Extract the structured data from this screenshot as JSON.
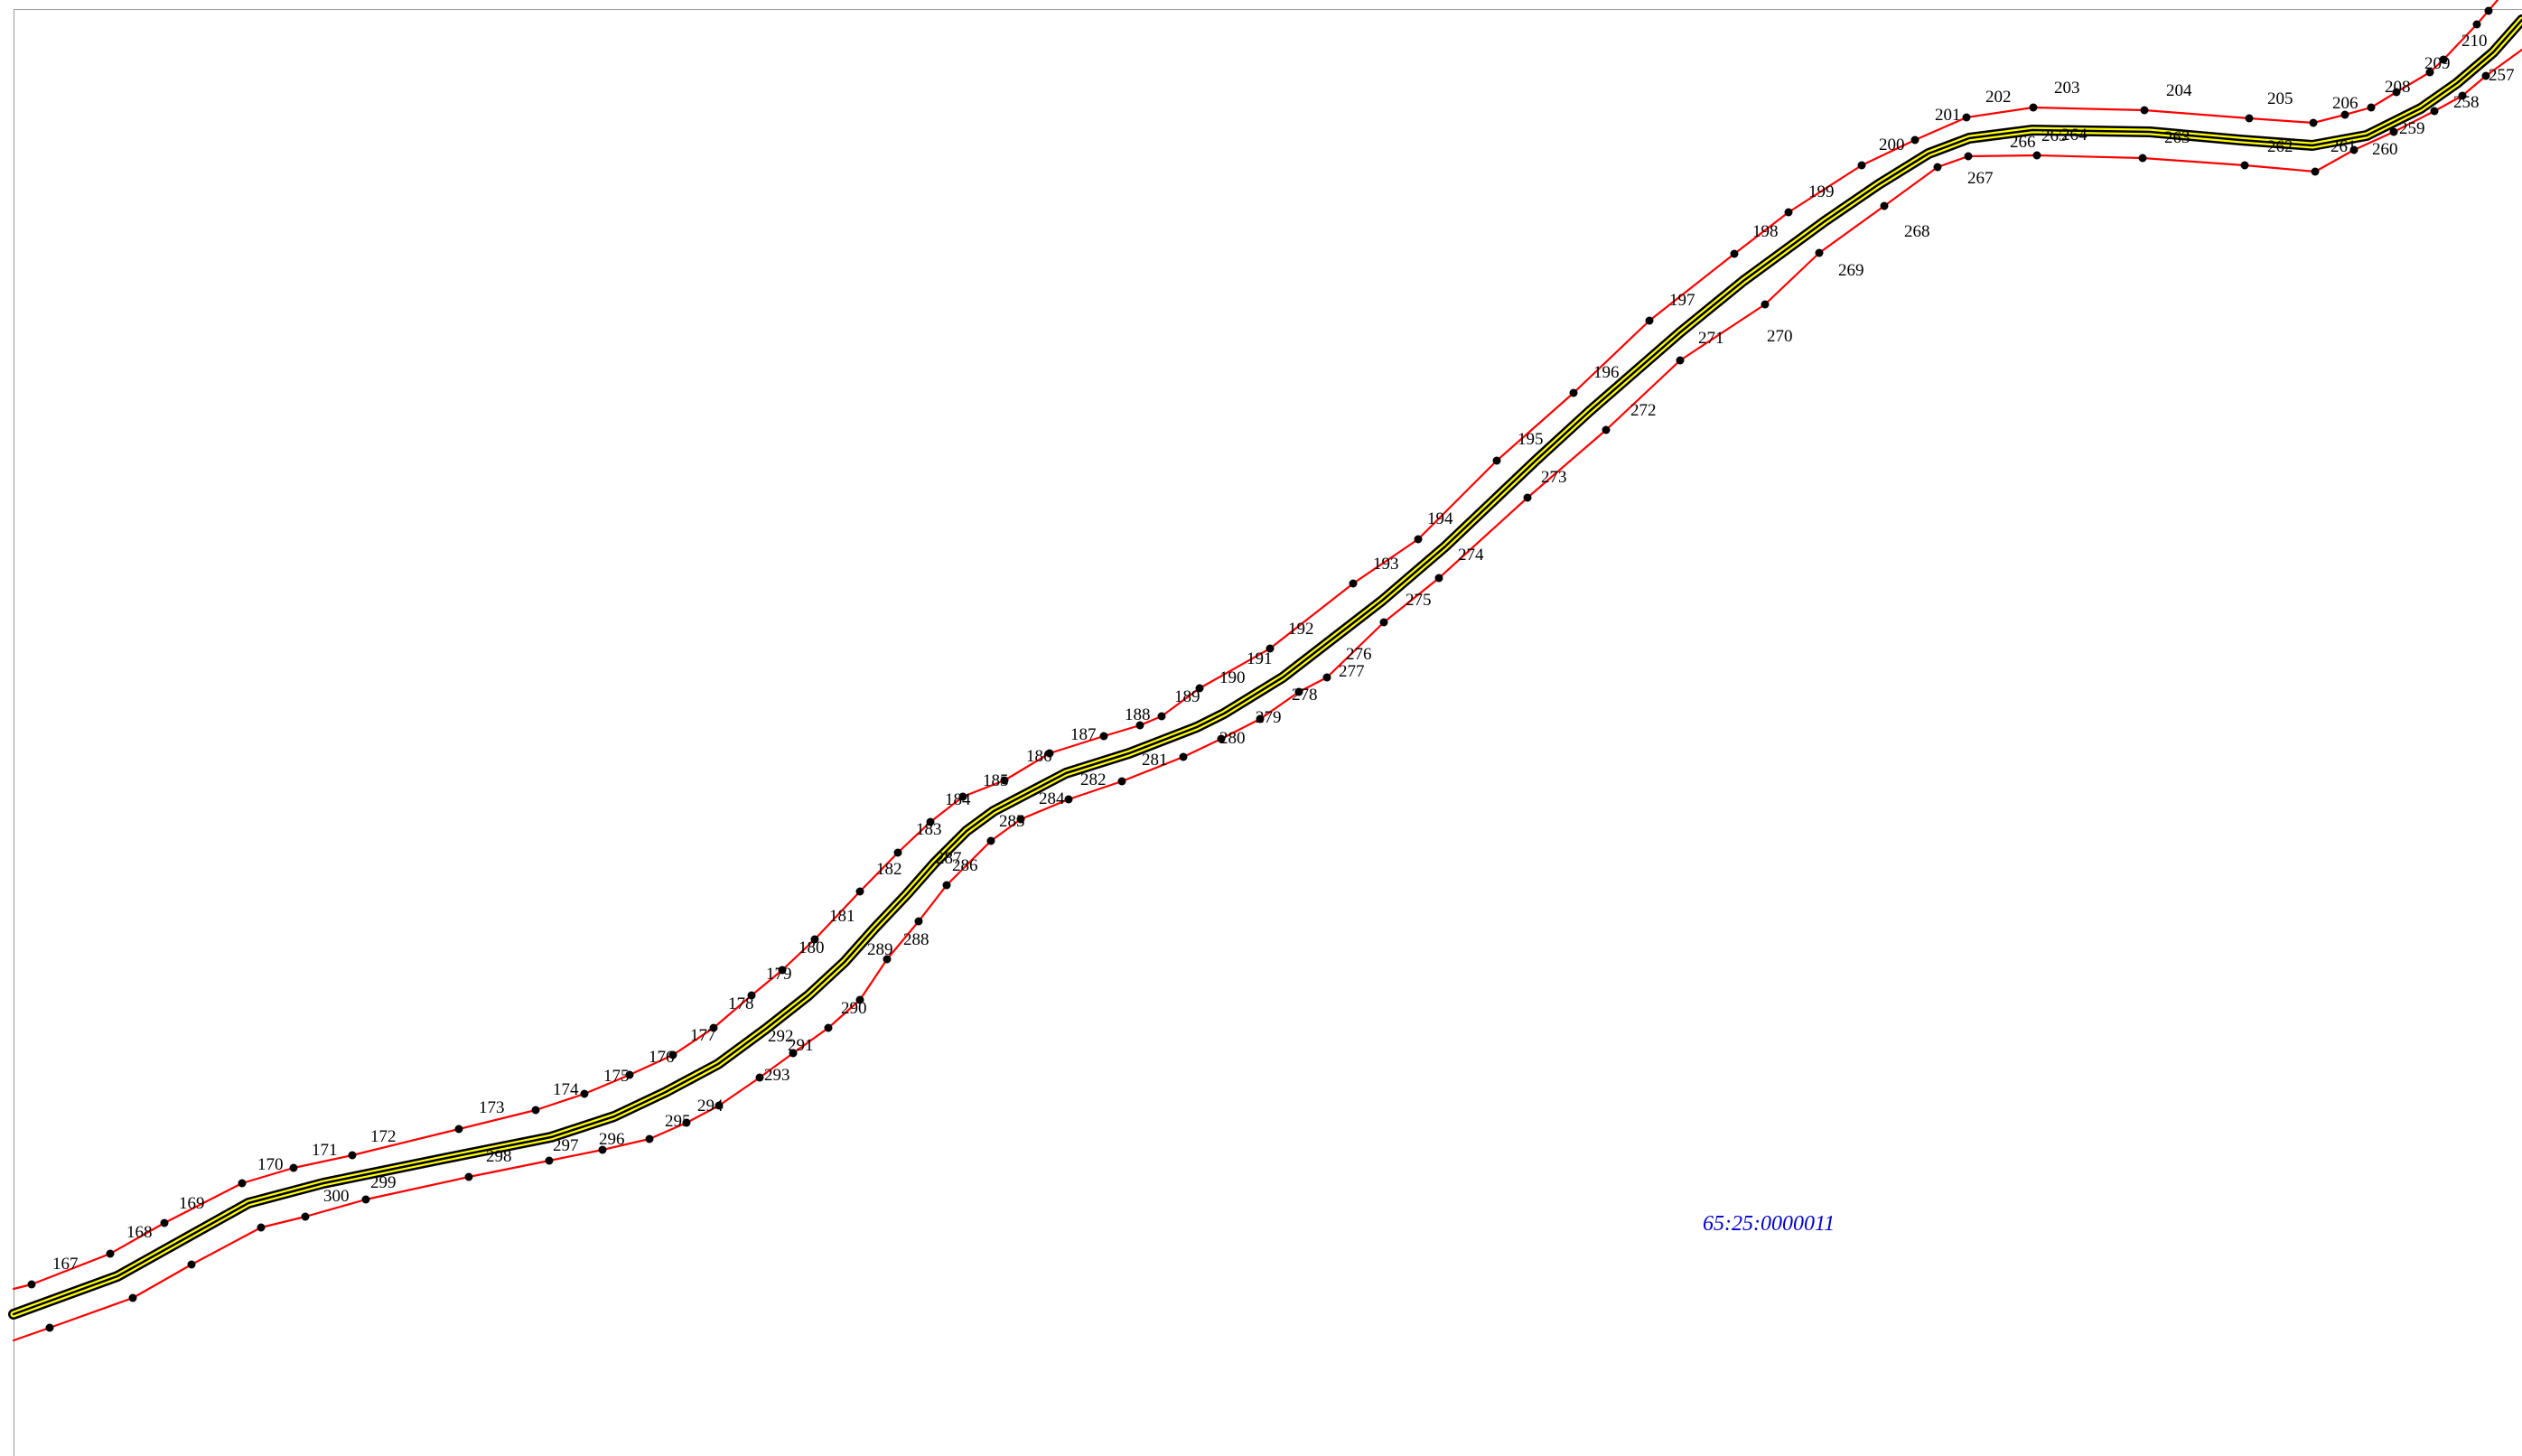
{
  "map": {
    "parcel_id": "65:25:0000011",
    "colors": {
      "boundary": "#ff0000",
      "centerline": "#000000",
      "fill": "#ffff00",
      "point": "#000000",
      "label": "#000000",
      "parcel_label": "#0000cc",
      "frame": "#9a9a9a"
    },
    "upper_boundary_point_labels": [
      "167",
      "168",
      "169",
      "170",
      "171",
      "172",
      "173",
      "174",
      "175",
      "176",
      "177",
      "178",
      "179",
      "180",
      "181",
      "182",
      "183",
      "184",
      "185",
      "186",
      "187",
      "188",
      "189",
      "190",
      "191",
      "192",
      "193",
      "194",
      "195",
      "196",
      "197",
      "198",
      "199",
      "200",
      "201",
      "202",
      "203",
      "204",
      "205",
      "206",
      "208",
      "209",
      "210"
    ],
    "lower_boundary_point_labels": [
      "257",
      "258",
      "259",
      "260",
      "261",
      "262",
      "263",
      "264",
      "265",
      "266",
      "267",
      "268",
      "269",
      "270",
      "271",
      "272",
      "273",
      "274",
      "275",
      "276",
      "277",
      "278",
      "279",
      "280",
      "281",
      "282",
      "284",
      "285",
      "286",
      "287",
      "288",
      "289",
      "290",
      "291",
      "292",
      "293",
      "294",
      "295",
      "296",
      "297",
      "298",
      "299",
      "300"
    ]
  }
}
